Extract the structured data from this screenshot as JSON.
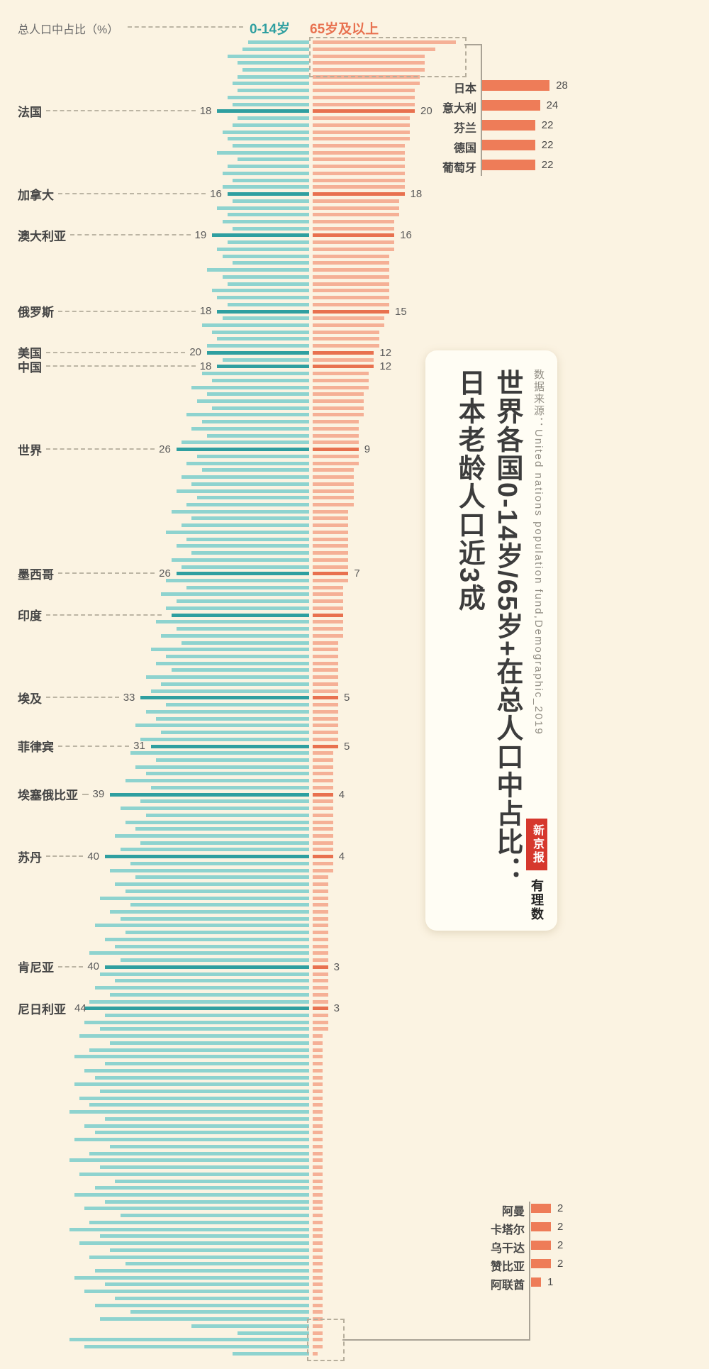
{
  "meta": {
    "background": "#fbf3e2"
  },
  "header": {
    "axis_label": "总人口中占比（%）",
    "legend": [
      {
        "label": "0-14岁",
        "color": "#2f9fa0"
      },
      {
        "label": "65岁及以上",
        "color": "#e8714f"
      }
    ]
  },
  "panel": {
    "source": "数据来源：United nations population fund,Demographic_2019",
    "title_line1": "世界各国0-14岁/65岁+在总人口中占比：",
    "title_line2": "日本老龄人口近3成",
    "logo_red": "新京报",
    "logo_black": "有理数"
  },
  "chart_data": {
    "type": "bar",
    "variant": "diverging-tornado",
    "unit": "%",
    "sort": "65岁及以上占比降序",
    "series": [
      {
        "name": "0-14岁",
        "color_normal": "#8ed3cf",
        "color_highlight": "#2f9fa0"
      },
      {
        "name": "65岁及以上",
        "color_normal": "#f5b096",
        "color_highlight": "#e8714f"
      }
    ],
    "rows": [
      [
        12,
        28
      ],
      [
        13,
        24
      ],
      [
        16,
        22
      ],
      [
        14,
        22
      ],
      [
        13,
        22
      ],
      [
        14,
        21
      ],
      [
        15,
        21
      ],
      [
        14,
        20
      ],
      [
        16,
        20
      ],
      [
        15,
        20
      ],
      [
        18,
        20
      ],
      [
        14,
        19
      ],
      [
        15,
        19
      ],
      [
        17,
        19
      ],
      [
        16,
        19
      ],
      [
        15,
        18
      ],
      [
        18,
        18
      ],
      [
        14,
        18
      ],
      [
        16,
        18
      ],
      [
        17,
        18
      ],
      [
        15,
        18
      ],
      [
        17,
        18
      ],
      [
        16,
        18
      ],
      [
        15,
        17
      ],
      [
        18,
        17
      ],
      [
        16,
        17
      ],
      [
        17,
        16
      ],
      [
        15,
        16
      ],
      [
        19,
        16
      ],
      [
        16,
        16
      ],
      [
        18,
        16
      ],
      [
        17,
        15
      ],
      [
        15,
        15
      ],
      [
        20,
        15
      ],
      [
        17,
        15
      ],
      [
        16,
        15
      ],
      [
        19,
        15
      ],
      [
        18,
        15
      ],
      [
        16,
        15
      ],
      [
        18,
        15
      ],
      [
        17,
        14
      ],
      [
        21,
        14
      ],
      [
        19,
        13
      ],
      [
        18,
        13
      ],
      [
        20,
        13
      ],
      [
        20,
        12
      ],
      [
        17,
        12
      ],
      [
        18,
        12
      ],
      [
        21,
        11
      ],
      [
        19,
        11
      ],
      [
        23,
        11
      ],
      [
        20,
        10
      ],
      [
        22,
        10
      ],
      [
        19,
        10
      ],
      [
        24,
        10
      ],
      [
        21,
        9
      ],
      [
        23,
        9
      ],
      [
        20,
        9
      ],
      [
        25,
        9
      ],
      [
        26,
        9
      ],
      [
        22,
        9
      ],
      [
        24,
        9
      ],
      [
        21,
        8
      ],
      [
        25,
        8
      ],
      [
        23,
        8
      ],
      [
        26,
        8
      ],
      [
        22,
        8
      ],
      [
        24,
        8
      ],
      [
        27,
        7
      ],
      [
        23,
        7
      ],
      [
        25,
        7
      ],
      [
        28,
        7
      ],
      [
        24,
        7
      ],
      [
        26,
        7
      ],
      [
        23,
        7
      ],
      [
        27,
        7
      ],
      [
        25,
        7
      ],
      [
        26,
        7
      ],
      [
        28,
        7
      ],
      [
        24,
        6
      ],
      [
        29,
        6
      ],
      [
        26,
        6
      ],
      [
        28,
        6
      ],
      [
        27,
        6
      ],
      [
        30,
        6
      ],
      [
        26,
        6
      ],
      [
        29,
        6
      ],
      [
        25,
        5
      ],
      [
        31,
        5
      ],
      [
        28,
        5
      ],
      [
        30,
        5
      ],
      [
        27,
        5
      ],
      [
        32,
        5
      ],
      [
        29,
        5
      ],
      [
        31,
        5
      ],
      [
        33,
        5
      ],
      [
        28,
        5
      ],
      [
        32,
        5
      ],
      [
        30,
        5
      ],
      [
        34,
        5
      ],
      [
        29,
        5
      ],
      [
        33,
        5
      ],
      [
        31,
        5
      ],
      [
        35,
        4
      ],
      [
        30,
        4
      ],
      [
        34,
        4
      ],
      [
        32,
        4
      ],
      [
        36,
        4
      ],
      [
        31,
        4
      ],
      [
        39,
        4
      ],
      [
        33,
        4
      ],
      [
        37,
        4
      ],
      [
        32,
        4
      ],
      [
        36,
        4
      ],
      [
        34,
        4
      ],
      [
        38,
        4
      ],
      [
        33,
        4
      ],
      [
        37,
        4
      ],
      [
        40,
        4
      ],
      [
        35,
        4
      ],
      [
        39,
        4
      ],
      [
        34,
        3
      ],
      [
        38,
        3
      ],
      [
        36,
        3
      ],
      [
        41,
        3
      ],
      [
        35,
        3
      ],
      [
        39,
        3
      ],
      [
        37,
        3
      ],
      [
        42,
        3
      ],
      [
        36,
        3
      ],
      [
        40,
        3
      ],
      [
        38,
        3
      ],
      [
        43,
        3
      ],
      [
        37,
        3
      ],
      [
        40,
        3
      ],
      [
        41,
        3
      ],
      [
        38,
        3
      ],
      [
        42,
        3
      ],
      [
        39,
        3
      ],
      [
        43,
        3
      ],
      [
        44,
        3
      ],
      [
        40,
        3
      ],
      [
        44,
        3
      ],
      [
        41,
        3
      ],
      [
        45,
        2
      ],
      [
        39,
        2
      ],
      [
        43,
        2
      ],
      [
        46,
        2
      ],
      [
        40,
        2
      ],
      [
        44,
        2
      ],
      [
        42,
        2
      ],
      [
        46,
        2
      ],
      [
        41,
        2
      ],
      [
        45,
        2
      ],
      [
        43,
        2
      ],
      [
        47,
        2
      ],
      [
        40,
        2
      ],
      [
        44,
        2
      ],
      [
        42,
        2
      ],
      [
        46,
        2
      ],
      [
        39,
        2
      ],
      [
        43,
        2
      ],
      [
        47,
        2
      ],
      [
        41,
        2
      ],
      [
        45,
        2
      ],
      [
        38,
        2
      ],
      [
        42,
        2
      ],
      [
        46,
        2
      ],
      [
        40,
        2
      ],
      [
        44,
        2
      ],
      [
        37,
        2
      ],
      [
        43,
        2
      ],
      [
        47,
        2
      ],
      [
        41,
        2
      ],
      [
        45,
        2
      ],
      [
        39,
        2
      ],
      [
        43,
        2
      ],
      [
        36,
        2
      ],
      [
        42,
        2
      ],
      [
        46,
        2
      ],
      [
        40,
        2
      ],
      [
        44,
        2
      ],
      [
        38,
        2
      ],
      [
        42,
        2
      ],
      [
        35,
        2
      ],
      [
        41,
        2
      ],
      [
        23,
        2
      ],
      [
        14,
        2
      ],
      [
        47,
        2
      ],
      [
        44,
        2
      ],
      [
        15,
        1
      ]
    ],
    "labeled": [
      {
        "index": 10,
        "name": "法国",
        "young": 18,
        "old": 20,
        "show_values": true
      },
      {
        "index": 22,
        "name": "加拿大",
        "young": 16,
        "old": 18,
        "show_values": true
      },
      {
        "index": 28,
        "name": "澳大利亚",
        "young": 19,
        "old": 16,
        "show_values": true
      },
      {
        "index": 39,
        "name": "俄罗斯",
        "young": 18,
        "old": 15,
        "show_values": true
      },
      {
        "index": 45,
        "name": "美国",
        "young": 20,
        "old": 12,
        "show_values": true
      },
      {
        "index": 47,
        "name": "中国",
        "young": 18,
        "old": 12,
        "show_values": true
      },
      {
        "index": 59,
        "name": "世界",
        "young": 26,
        "old": 9,
        "show_values": true
      },
      {
        "index": 77,
        "name": "墨西哥",
        "young": 26,
        "old": 7,
        "show_values": true
      },
      {
        "index": 83,
        "name": "印度",
        "show_values": false
      },
      {
        "index": 95,
        "name": "埃及",
        "young": 33,
        "old": 5,
        "show_values": true
      },
      {
        "index": 102,
        "name": "菲律宾",
        "young": 31,
        "old": 5,
        "show_values": true
      },
      {
        "index": 109,
        "name": "埃塞俄比亚",
        "young": 39,
        "old": 4,
        "show_values": true
      },
      {
        "index": 118,
        "name": "苏丹",
        "young": 40,
        "old": 4,
        "show_values": true
      },
      {
        "index": 134,
        "name": "肯尼亚",
        "young": 40,
        "old": 3,
        "show_values": true
      },
      {
        "index": 140,
        "name": "尼日利亚",
        "young": 44,
        "old": 3,
        "show_values": true
      }
    ],
    "top_callout": {
      "color": "#ee7c58",
      "items": [
        {
          "index": 0,
          "name": "日本",
          "value": 28
        },
        {
          "index": 1,
          "name": "意大利",
          "value": 24
        },
        {
          "index": 2,
          "name": "芬兰",
          "value": 22
        },
        {
          "index": 3,
          "name": "德国",
          "value": 22
        },
        {
          "index": 4,
          "name": "葡萄牙",
          "value": 22
        }
      ]
    },
    "bottom_callout": {
      "color": "#ee7c58",
      "items": [
        {
          "index": 186,
          "name": "阿曼",
          "value": 2
        },
        {
          "index": 187,
          "name": "卡塔尔",
          "value": 2
        },
        {
          "index": 188,
          "name": "乌干达",
          "value": 2
        },
        {
          "index": 189,
          "name": "赞比亚",
          "value": 2
        },
        {
          "index": 190,
          "name": "阿联酋",
          "value": 1
        }
      ]
    }
  }
}
